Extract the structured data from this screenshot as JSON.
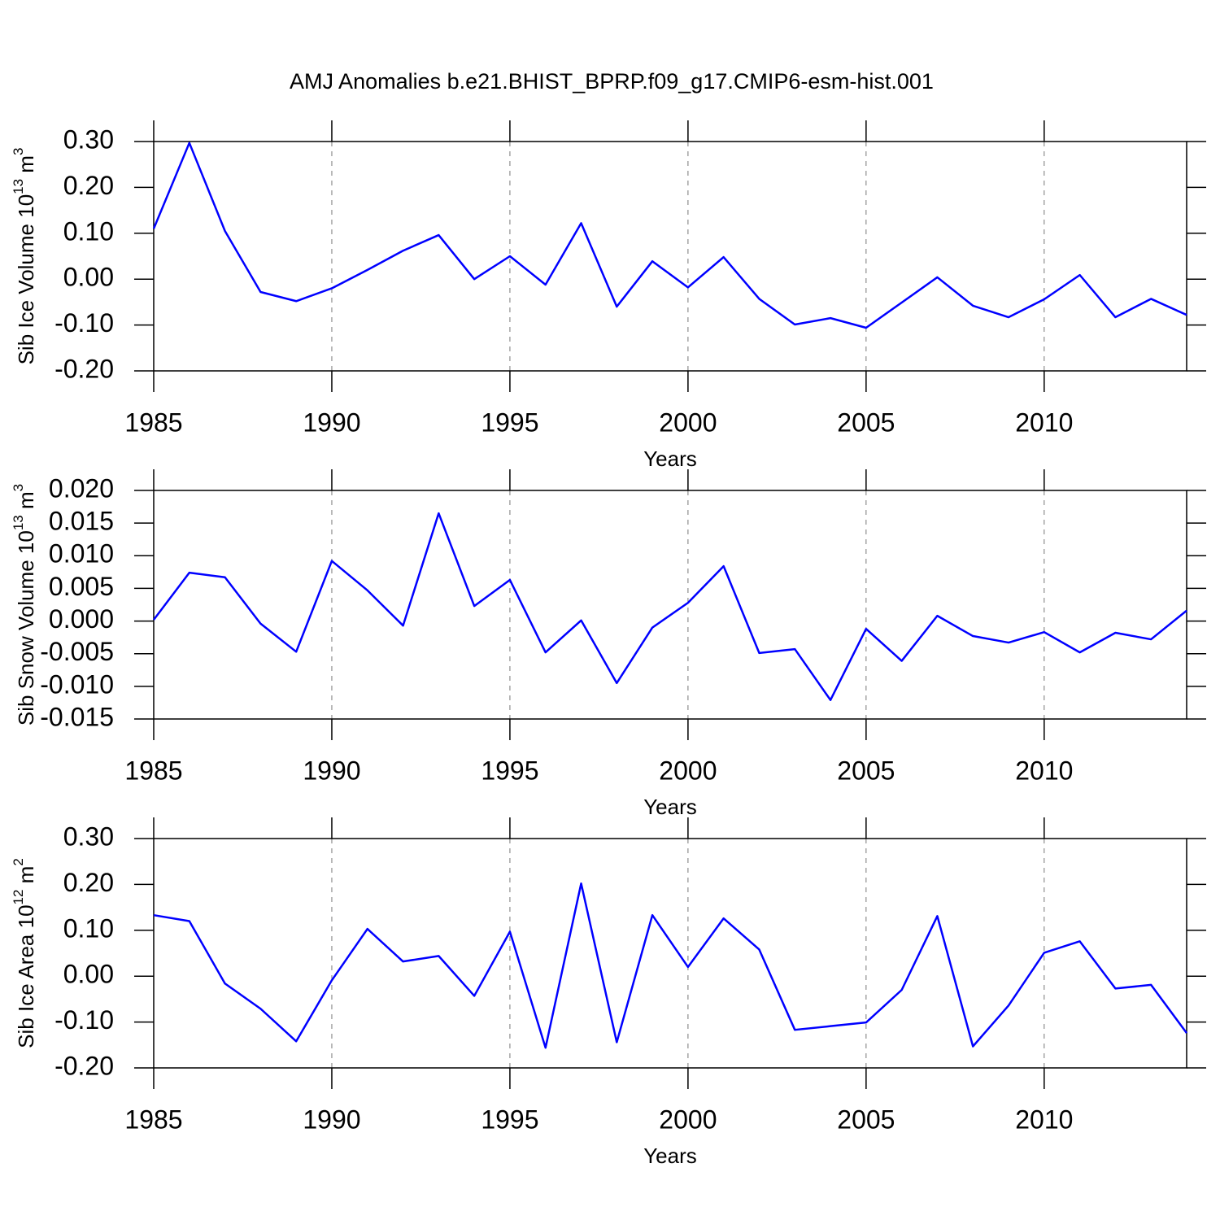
{
  "chart_data": [
    {
      "type": "line",
      "title": "AMJ Anomalies b.e21.BHIST_BPRP.f09_g17.CMIP6-esm-hist.001",
      "xlabel": "Years",
      "ylabel": {
        "text": "Sib Ice Volume 10",
        "exponent": "13",
        "unit": " m",
        "unit_exponent": "3"
      },
      "x": [
        1985,
        1986,
        1987,
        1988,
        1989,
        1990,
        1991,
        1992,
        1993,
        1994,
        1995,
        1996,
        1997,
        1998,
        1999,
        2000,
        2001,
        2002,
        2003,
        2004,
        2005,
        2006,
        2007,
        2008,
        2009,
        2010,
        2011,
        2012,
        2013,
        2014
      ],
      "series": [
        {
          "color": "#0000ff",
          "values": [
            0.11,
            0.297,
            0.105,
            -0.028,
            -0.048,
            -0.02,
            0.02,
            0.062,
            0.096,
            0.0,
            0.05,
            -0.012,
            0.122,
            -0.06,
            0.039,
            -0.018,
            0.048,
            -0.043,
            -0.099,
            -0.085,
            -0.106,
            -0.051,
            0.004,
            -0.058,
            -0.083,
            -0.044,
            0.009,
            -0.083,
            -0.043,
            -0.078
          ]
        }
      ],
      "xlim": [
        1985,
        2014
      ],
      "xticks": [
        1985,
        1990,
        1995,
        2000,
        2005,
        2010
      ],
      "ylim": [
        -0.2,
        0.3
      ],
      "yticks": [
        {
          "value": -0.2,
          "label": "-0.20"
        },
        {
          "value": -0.1,
          "label": "-0.10"
        },
        {
          "value": 0,
          "label": "0.00"
        },
        {
          "value": 0.1,
          "label": "0.10"
        },
        {
          "value": 0.2,
          "label": "0.20"
        },
        {
          "value": 0.3,
          "label": "0.30"
        }
      ],
      "xgrid": true
    },
    {
      "type": "line",
      "xlabel": "Years",
      "ylabel": {
        "text": "Sib Snow Volume 10",
        "exponent": "13",
        "unit": " m",
        "unit_exponent": "3"
      },
      "x": [
        1985,
        1986,
        1987,
        1988,
        1989,
        1990,
        1991,
        1992,
        1993,
        1994,
        1995,
        1996,
        1997,
        1998,
        1999,
        2000,
        2001,
        2002,
        2003,
        2004,
        2005,
        2006,
        2007,
        2008,
        2009,
        2010,
        2011,
        2012,
        2013,
        2014
      ],
      "series": [
        {
          "color": "#0000ff",
          "values": [
            0.0002,
            0.0074,
            0.0067,
            -0.0004,
            -0.0047,
            0.0092,
            0.0047,
            -0.0007,
            0.0165,
            0.0023,
            0.0063,
            -0.0048,
            0.0001,
            -0.0095,
            -0.001,
            0.0028,
            0.0084,
            -0.0049,
            -0.0043,
            -0.0121,
            -0.0012,
            -0.0061,
            0.0008,
            -0.0023,
            -0.0033,
            -0.0017,
            -0.0048,
            -0.0018,
            -0.0028,
            0.0016
          ]
        }
      ],
      "xlim": [
        1985,
        2014
      ],
      "xticks": [
        1985,
        1990,
        1995,
        2000,
        2005,
        2010
      ],
      "ylim": [
        -0.015,
        0.02
      ],
      "yticks": [
        {
          "value": -0.015,
          "label": "-0.015"
        },
        {
          "value": -0.01,
          "label": "-0.010"
        },
        {
          "value": -0.005,
          "label": "-0.005"
        },
        {
          "value": 0,
          "label": "0.000"
        },
        {
          "value": 0.005,
          "label": "0.005"
        },
        {
          "value": 0.01,
          "label": "0.010"
        },
        {
          "value": 0.015,
          "label": "0.015"
        },
        {
          "value": 0.02,
          "label": "0.020"
        }
      ],
      "xgrid": true
    },
    {
      "type": "line",
      "xlabel": "Years",
      "ylabel": {
        "text": "Sib Ice Area 10",
        "exponent": "12",
        "unit": " m",
        "unit_exponent": "2"
      },
      "x": [
        1985,
        1986,
        1987,
        1988,
        1989,
        1990,
        1991,
        1992,
        1993,
        1994,
        1995,
        1996,
        1997,
        1998,
        1999,
        2000,
        2001,
        2002,
        2003,
        2004,
        2005,
        2006,
        2007,
        2008,
        2009,
        2010,
        2011,
        2012,
        2013,
        2014
      ],
      "series": [
        {
          "color": "#0000ff",
          "values": [
            0.133,
            0.12,
            -0.016,
            -0.071,
            -0.142,
            -0.009,
            0.103,
            0.032,
            0.044,
            -0.043,
            0.097,
            -0.156,
            0.202,
            -0.144,
            0.133,
            0.02,
            0.126,
            0.058,
            -0.117,
            -0.109,
            -0.101,
            -0.03,
            0.131,
            -0.153,
            -0.064,
            0.051,
            0.076,
            -0.027,
            -0.019,
            -0.124
          ]
        }
      ],
      "xlim": [
        1985,
        2014
      ],
      "xticks": [
        1985,
        1990,
        1995,
        2000,
        2005,
        2010
      ],
      "ylim": [
        -0.2,
        0.3
      ],
      "yticks": [
        {
          "value": -0.2,
          "label": "-0.20"
        },
        {
          "value": -0.1,
          "label": "-0.10"
        },
        {
          "value": 0,
          "label": "0.00"
        },
        {
          "value": 0.1,
          "label": "0.10"
        },
        {
          "value": 0.2,
          "label": "0.20"
        },
        {
          "value": 0.3,
          "label": "0.30"
        }
      ],
      "xgrid": true
    }
  ]
}
